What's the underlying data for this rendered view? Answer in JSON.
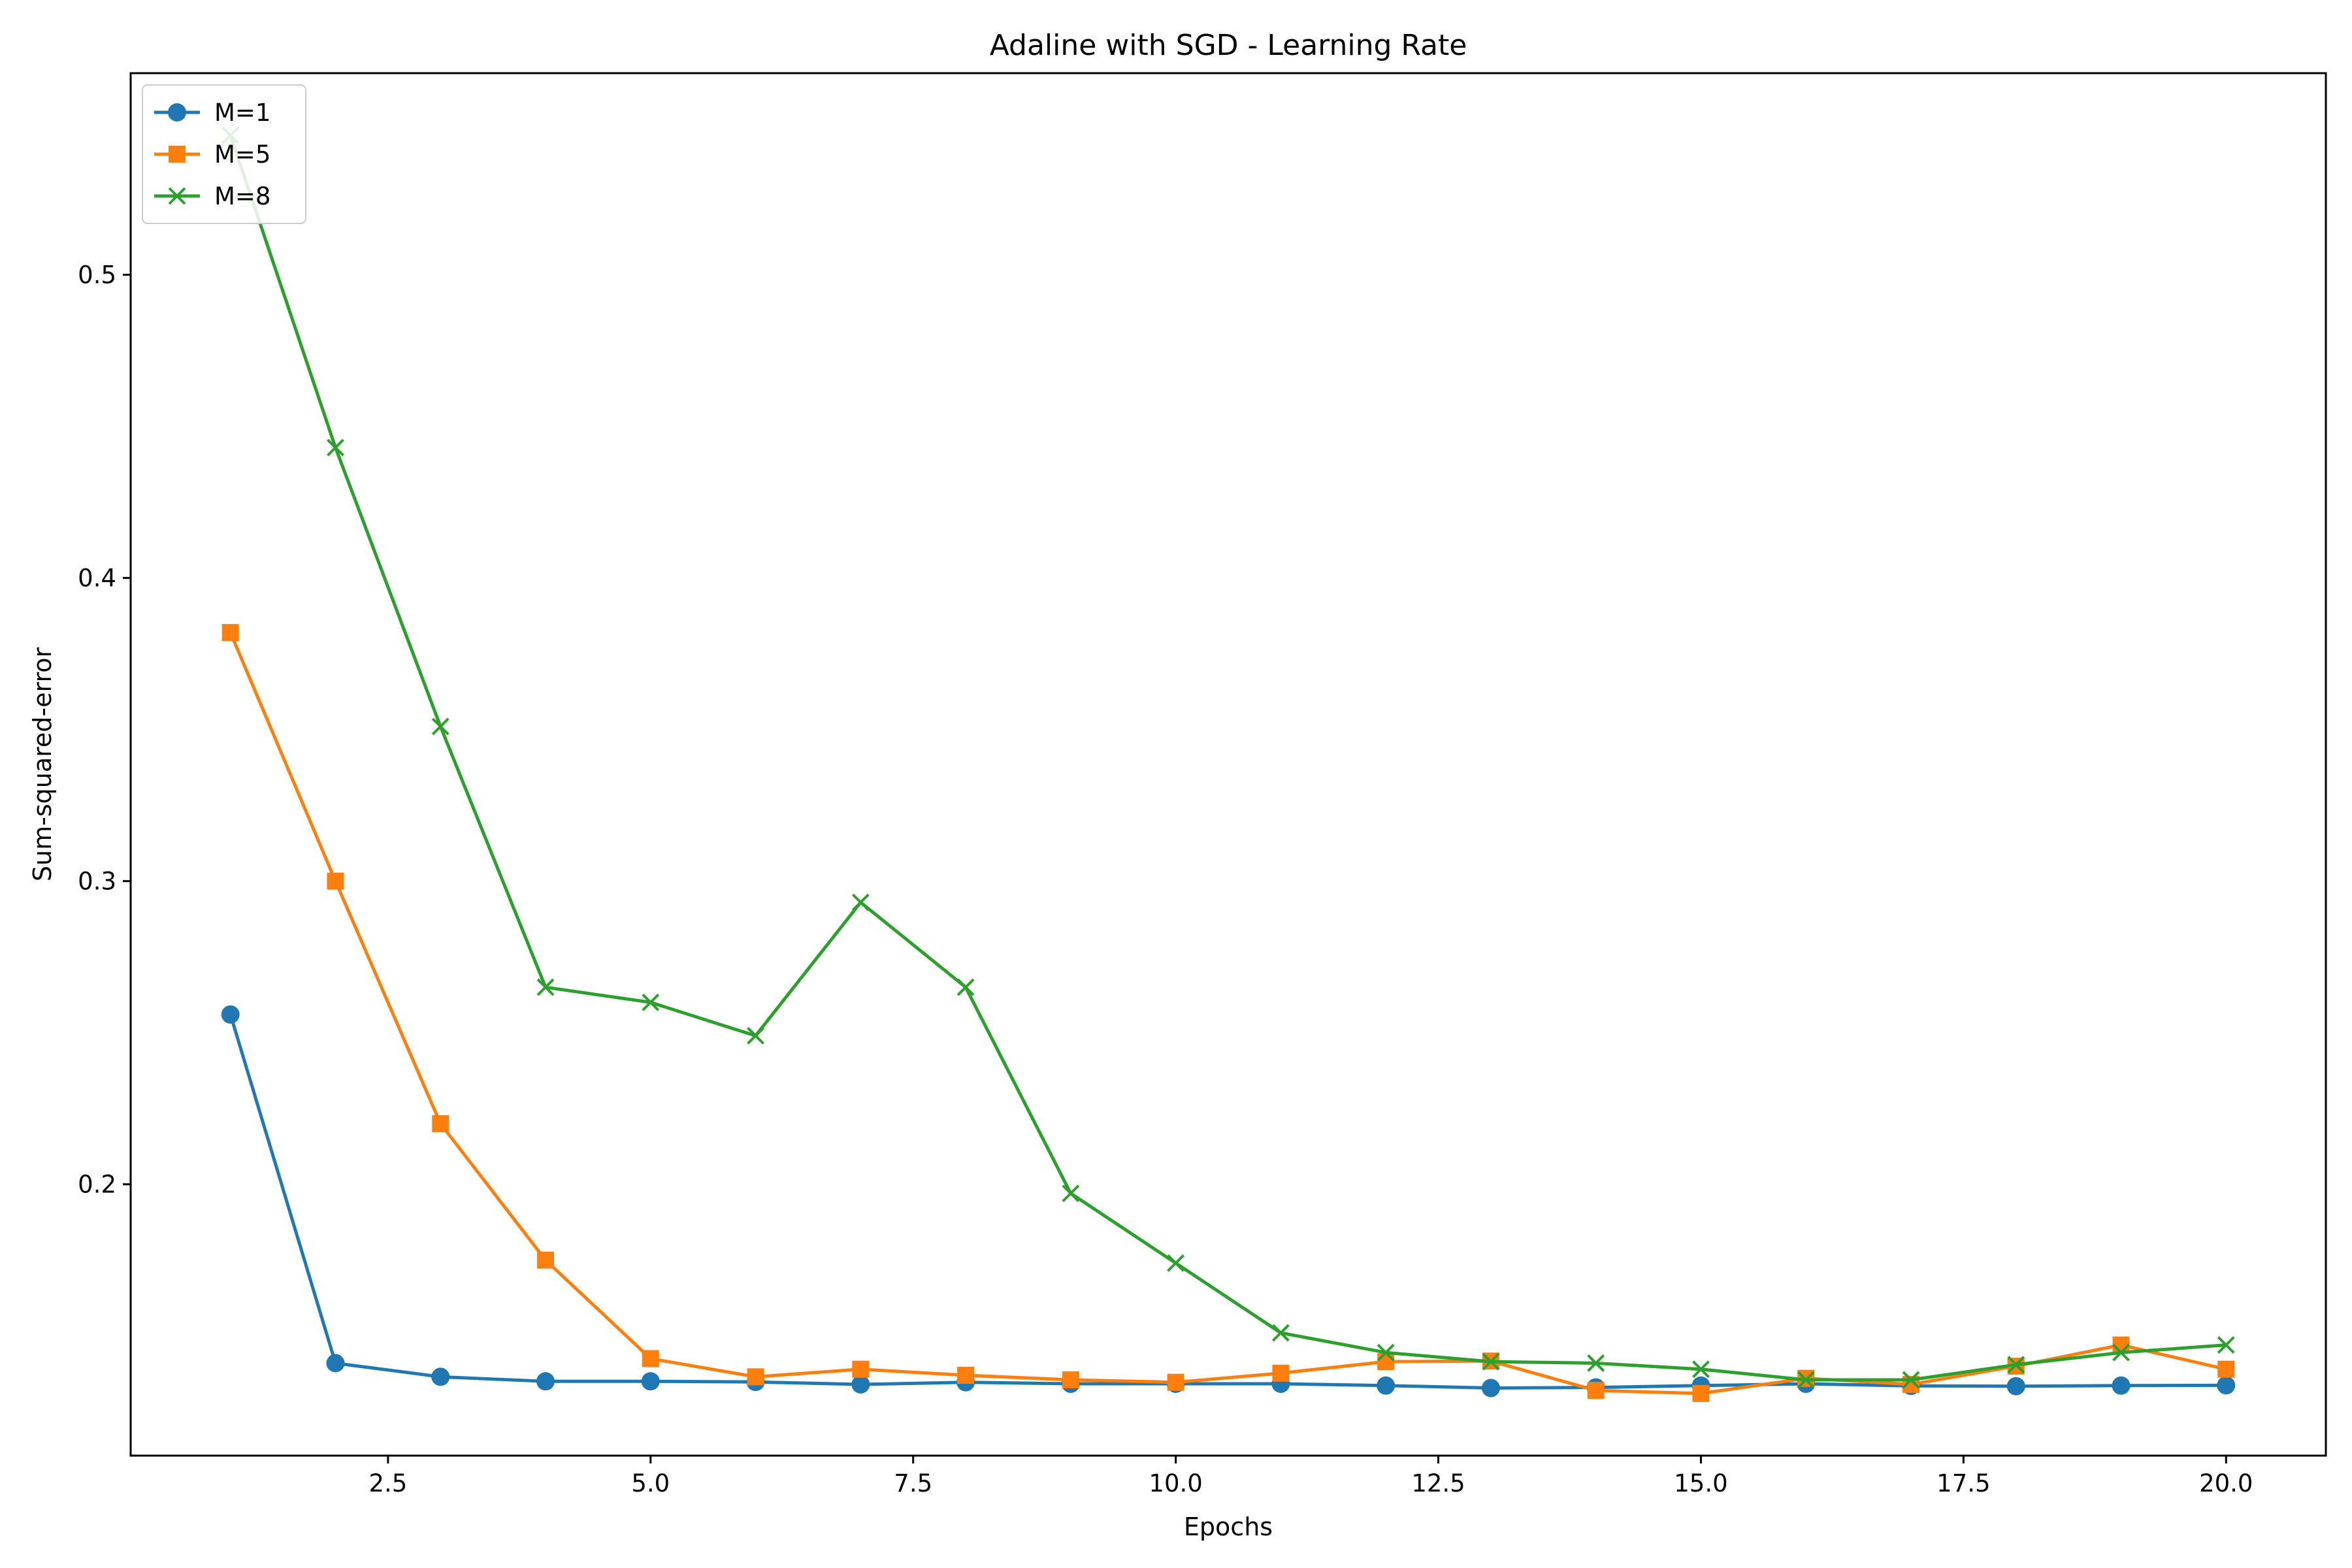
{
  "chart_data": {
    "type": "line",
    "title": "Adaline with SGD - Learning Rate",
    "xlabel": "Epochs",
    "ylabel": "Sum-squared-error",
    "xlim": [
      0.05,
      20.95
    ],
    "ylim": [
      0.1105,
      0.5665
    ],
    "xticks": [
      2.5,
      5.0,
      7.5,
      10.0,
      12.5,
      15.0,
      17.5,
      20.0
    ],
    "xtick_labels": [
      "2.5",
      "5.0",
      "7.5",
      "10.0",
      "12.5",
      "15.0",
      "17.5",
      "20.0"
    ],
    "yticks": [
      0.2,
      0.3,
      0.4,
      0.5
    ],
    "ytick_labels": [
      "0.2",
      "0.3",
      "0.4",
      "0.5"
    ],
    "grid": false,
    "legend_position": "top-left",
    "x": [
      1,
      2,
      3,
      4,
      5,
      6,
      7,
      8,
      9,
      10,
      11,
      12,
      13,
      14,
      15,
      16,
      17,
      18,
      19,
      20
    ],
    "series": [
      {
        "name": "M=1",
        "color": "#1f77b4",
        "marker": "circle",
        "values": [
          0.256,
          0.141,
          0.1365,
          0.135,
          0.135,
          0.1348,
          0.134,
          0.1347,
          0.1342,
          0.1342,
          0.1342,
          0.1336,
          0.1328,
          0.133,
          0.1336,
          0.1342,
          0.1335,
          0.1334,
          0.1336,
          0.1337
        ]
      },
      {
        "name": "M=5",
        "color": "#ff7f0e",
        "marker": "square",
        "values": [
          0.382,
          0.3,
          0.22,
          0.175,
          0.1425,
          0.1365,
          0.139,
          0.137,
          0.1355,
          0.1347,
          0.1377,
          0.1415,
          0.1417,
          0.132,
          0.131,
          0.136,
          0.134,
          0.14,
          0.147,
          0.139
        ]
      },
      {
        "name": "M=8",
        "color": "#2ca02c",
        "marker": "x",
        "values": [
          0.546,
          0.443,
          0.351,
          0.265,
          0.26,
          0.249,
          0.293,
          0.265,
          0.197,
          0.174,
          0.151,
          0.1445,
          0.1415,
          0.141,
          0.139,
          0.1355,
          0.1355,
          0.1405,
          0.1445,
          0.147
        ]
      }
    ]
  }
}
